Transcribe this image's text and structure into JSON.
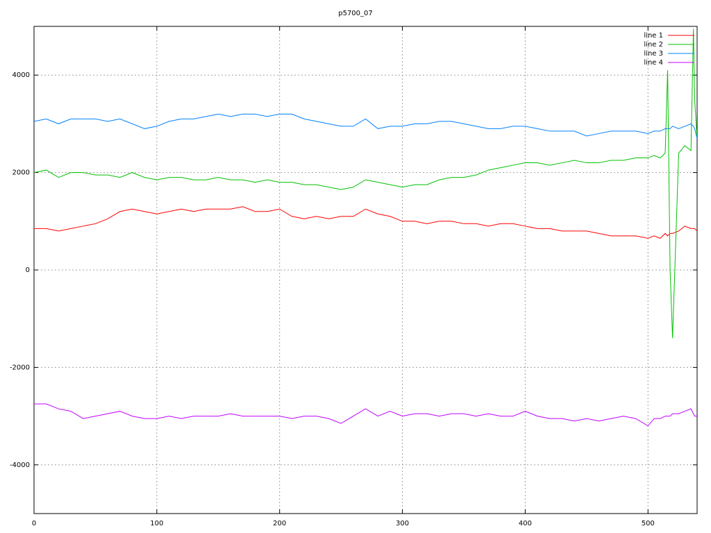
{
  "chart_data": {
    "type": "line",
    "title": "p5700_07",
    "x": [
      0,
      10,
      20,
      30,
      40,
      50,
      60,
      70,
      80,
      90,
      100,
      110,
      120,
      130,
      140,
      150,
      160,
      170,
      180,
      190,
      200,
      210,
      220,
      230,
      240,
      250,
      260,
      270,
      280,
      290,
      300,
      310,
      320,
      330,
      340,
      350,
      360,
      370,
      380,
      390,
      400,
      410,
      420,
      430,
      440,
      450,
      460,
      470,
      480,
      490,
      500,
      505,
      510,
      514,
      516,
      518,
      520,
      525,
      530,
      535,
      537,
      538,
      540
    ],
    "series": [
      {
        "name": "line 1",
        "color": "#ff0000",
        "values": [
          850,
          850,
          800,
          850,
          900,
          950,
          1050,
          1200,
          1250,
          1200,
          1150,
          1200,
          1250,
          1200,
          1250,
          1250,
          1250,
          1300,
          1200,
          1200,
          1250,
          1100,
          1050,
          1100,
          1050,
          1100,
          1100,
          1250,
          1150,
          1100,
          1000,
          1000,
          950,
          1000,
          1000,
          950,
          950,
          900,
          950,
          950,
          900,
          850,
          850,
          800,
          800,
          800,
          750,
          700,
          700,
          700,
          650,
          700,
          650,
          750,
          700,
          750,
          750,
          800,
          900,
          850,
          850,
          850,
          800
        ]
      },
      {
        "name": "line 2",
        "color": "#00c000",
        "values": [
          2000,
          2050,
          1900,
          2000,
          2000,
          1950,
          1950,
          1900,
          2000,
          1900,
          1850,
          1900,
          1900,
          1850,
          1850,
          1900,
          1850,
          1850,
          1800,
          1850,
          1800,
          1800,
          1750,
          1750,
          1700,
          1650,
          1700,
          1850,
          1800,
          1750,
          1700,
          1750,
          1750,
          1850,
          1900,
          1900,
          1950,
          2050,
          2100,
          2150,
          2200,
          2200,
          2150,
          2200,
          2250,
          2200,
          2200,
          2250,
          2250,
          2300,
          2300,
          2350,
          2300,
          2400,
          4100,
          0,
          -1400,
          2400,
          2550,
          2450,
          4950,
          3500,
          2700
        ]
      },
      {
        "name": "line 3",
        "color": "#0080ff",
        "values": [
          3050,
          3100,
          3000,
          3100,
          3100,
          3100,
          3050,
          3100,
          3000,
          2900,
          2950,
          3050,
          3100,
          3100,
          3150,
          3200,
          3150,
          3200,
          3200,
          3150,
          3200,
          3200,
          3100,
          3050,
          3000,
          2950,
          2950,
          3100,
          2900,
          2950,
          2950,
          3000,
          3000,
          3050,
          3050,
          3000,
          2950,
          2900,
          2900,
          2950,
          2950,
          2900,
          2850,
          2850,
          2850,
          2750,
          2800,
          2850,
          2850,
          2850,
          2800,
          2850,
          2850,
          2900,
          2900,
          2900,
          2950,
          2900,
          2950,
          3000,
          2950,
          2900,
          2700
        ]
      },
      {
        "name": "line 4",
        "color": "#c000ff",
        "values": [
          -2750,
          -2750,
          -2850,
          -2900,
          -3050,
          -3000,
          -2950,
          -2900,
          -3000,
          -3050,
          -3050,
          -3000,
          -3050,
          -3000,
          -3000,
          -3000,
          -2950,
          -3000,
          -3000,
          -3000,
          -3000,
          -3050,
          -3000,
          -3000,
          -3050,
          -3150,
          -3000,
          -2850,
          -3000,
          -2900,
          -3000,
          -2950,
          -2950,
          -3000,
          -2950,
          -2950,
          -3000,
          -2950,
          -3000,
          -3000,
          -2900,
          -3000,
          -3050,
          -3050,
          -3100,
          -3050,
          -3100,
          -3050,
          -3000,
          -3050,
          -3200,
          -3050,
          -3050,
          -3000,
          -3000,
          -3000,
          -2950,
          -2950,
          -2900,
          -2850,
          -2950,
          -3000,
          -3000
        ]
      }
    ],
    "xlim": [
      0,
      540
    ],
    "ylim": [
      -5000,
      5000
    ],
    "xticks": [
      0,
      100,
      200,
      300,
      400,
      500
    ],
    "yticks": [
      -4000,
      -2000,
      0,
      2000,
      4000
    ],
    "grid": true,
    "legend": "top-right"
  }
}
